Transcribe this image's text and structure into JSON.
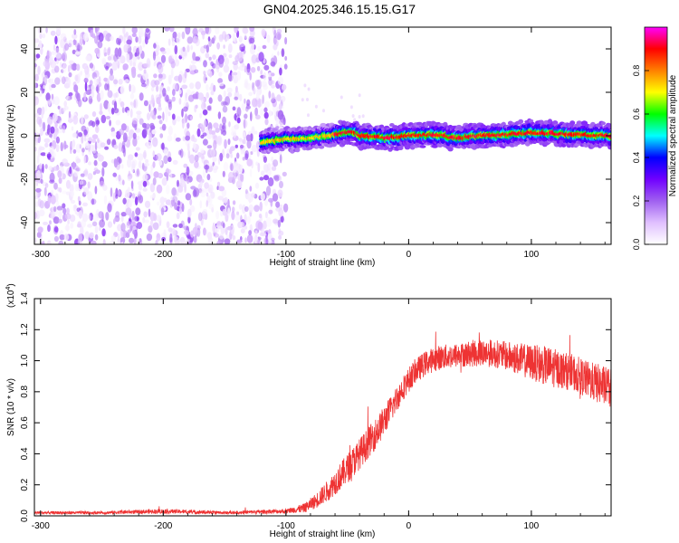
{
  "title": "GN04.2025.346.15.15.G17",
  "chart_data": [
    {
      "type": "heatmap",
      "title": "GN04.2025.346.15.15.G17",
      "xlabel": "Height of straight line (km)",
      "ylabel": "Frequency (Hz)",
      "xlim": [
        -305,
        165
      ],
      "ylim": [
        -50,
        50
      ],
      "xticks": [
        -300,
        -200,
        -100,
        0,
        100
      ],
      "yticks": [
        -40,
        -20,
        0,
        20,
        40
      ],
      "xtick_labels": [
        "-300",
        "-200",
        "-100",
        "0",
        "100"
      ],
      "ytick_labels": [
        "-40",
        "-20",
        "0",
        "20",
        "40"
      ],
      "noise_region": [
        -305,
        -100
      ],
      "signal_region": [
        -120,
        165
      ],
      "signal_ridge": {
        "x": [
          -120,
          -100,
          -80,
          -60,
          -45,
          -40,
          -20,
          0,
          20,
          40,
          60,
          80,
          100,
          120,
          140,
          165
        ],
        "freq": [
          -3,
          -1.5,
          -1,
          0.5,
          2,
          0,
          -1,
          0,
          0.5,
          -1,
          0,
          0.5,
          1.5,
          1,
          0.5,
          0
        ]
      },
      "colorbar": {
        "label": "Normalized spectral amplitude",
        "range": [
          0,
          1
        ],
        "ticks": [
          0.0,
          0.2,
          0.4,
          0.6,
          0.8
        ],
        "tick_labels": [
          "0.0",
          "0.2",
          "0.4",
          "0.6",
          "0.8"
        ],
        "colors": [
          "#ffffff",
          "#e0c0ff",
          "#a060f0",
          "#7000ff",
          "#0000ff",
          "#00ffff",
          "#00ff00",
          "#ffff00",
          "#ff8000",
          "#ff0000",
          "#ff00ff"
        ]
      }
    },
    {
      "type": "line",
      "xlabel": "Height of straight line (km)",
      "ylabel": "SNR (10 * v/v)",
      "scale_label": "(x10",
      "scale_exp": "4",
      "scale_close": ")",
      "xlim": [
        -305,
        165
      ],
      "ylim": [
        0,
        1.4
      ],
      "xticks": [
        -300,
        -200,
        -100,
        0,
        100
      ],
      "yticks": [
        0.0,
        0.2,
        0.4,
        0.6,
        0.8,
        1.0,
        1.2,
        1.4
      ],
      "xtick_labels": [
        "-300",
        "-200",
        "-100",
        "0",
        "100"
      ],
      "ytick_labels": [
        "0.0",
        "0.2",
        "0.4",
        "0.6",
        "0.8",
        "1.0",
        "1.2",
        "1.4"
      ],
      "line_color": "#ee3333",
      "series": [
        {
          "name": "SNR",
          "x": [
            -305,
            -250,
            -200,
            -150,
            -100,
            -85,
            -75,
            -65,
            -55,
            -45,
            -35,
            -25,
            -15,
            -5,
            5,
            15,
            25,
            35,
            45,
            55,
            65,
            75,
            85,
            95,
            105,
            115,
            125,
            135,
            145,
            155,
            165
          ],
          "values": [
            0.02,
            0.02,
            0.03,
            0.02,
            0.03,
            0.05,
            0.1,
            0.17,
            0.26,
            0.35,
            0.45,
            0.55,
            0.68,
            0.82,
            0.93,
            0.99,
            1.02,
            1.03,
            1.04,
            1.05,
            1.05,
            1.04,
            1.02,
            1.0,
            0.98,
            0.96,
            0.94,
            0.92,
            0.88,
            0.85,
            0.82
          ],
          "noise_amplitude": [
            0.01,
            0.01,
            0.015,
            0.01,
            0.015,
            0.03,
            0.05,
            0.07,
            0.09,
            0.1,
            0.1,
            0.1,
            0.09,
            0.08,
            0.08,
            0.08,
            0.08,
            0.08,
            0.08,
            0.09,
            0.09,
            0.09,
            0.1,
            0.11,
            0.12,
            0.13,
            0.12,
            0.12,
            0.12,
            0.13,
            0.13
          ]
        }
      ]
    }
  ]
}
